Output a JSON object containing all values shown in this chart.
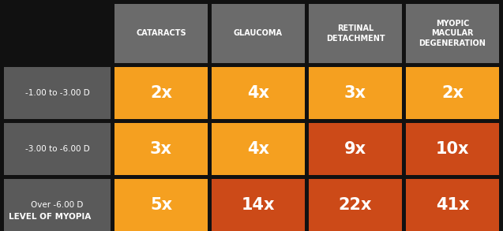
{
  "background_color": "#111111",
  "header_bg": "#6B6B6B",
  "row_bg": "#5A5A5A",
  "orange_light": "#F5A020",
  "orange_dark": "#CC4A18",
  "text_white": "#FFFFFF",
  "col_headers": [
    "CATARACTS",
    "GLAUCOMA",
    "RETINAL\nDETACHMENT",
    "MYOPIC\nMACULAR\nDEGENERATION"
  ],
  "row_headers": [
    "-1.00 to -3.00 D",
    "-3.00 to -6.00 D",
    "Over -6.00 D"
  ],
  "row_label": "LEVEL OF MYOPIA",
  "values": [
    [
      "2x",
      "4x",
      "3x",
      "2x"
    ],
    [
      "3x",
      "4x",
      "9x",
      "10x"
    ],
    [
      "5x",
      "14x",
      "22x",
      "41x"
    ]
  ],
  "cell_colors": [
    [
      "#F5A020",
      "#F5A020",
      "#F5A020",
      "#F5A020"
    ],
    [
      "#F5A020",
      "#F5A020",
      "#CC4A18",
      "#CC4A18"
    ],
    [
      "#F5A020",
      "#CC4A18",
      "#CC4A18",
      "#CC4A18"
    ]
  ],
  "n_rows": 3,
  "n_cols": 4,
  "figsize": [
    6.37,
    2.93
  ],
  "dpi": 100
}
